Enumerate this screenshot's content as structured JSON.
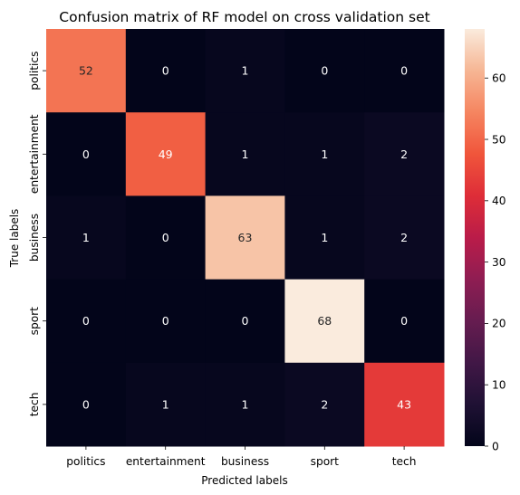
{
  "chart_data": {
    "type": "heatmap",
    "title": "Confusion matrix of RF model on cross validation set",
    "xlabel": "Predicted labels",
    "ylabel": "True labels",
    "x_categories": [
      "politics",
      "entertainment",
      "business",
      "sport",
      "tech"
    ],
    "y_categories": [
      "politics",
      "entertainment",
      "business",
      "sport",
      "tech"
    ],
    "values": [
      [
        52,
        0,
        1,
        0,
        0
      ],
      [
        0,
        49,
        1,
        1,
        2
      ],
      [
        1,
        0,
        63,
        1,
        2
      ],
      [
        0,
        0,
        0,
        68,
        0
      ],
      [
        0,
        1,
        1,
        2,
        43
      ]
    ],
    "colorbar": {
      "min": 0,
      "max": 68,
      "ticks": [
        0,
        10,
        20,
        30,
        40,
        50,
        60
      ],
      "colormap": "rocket"
    },
    "grid": false
  }
}
